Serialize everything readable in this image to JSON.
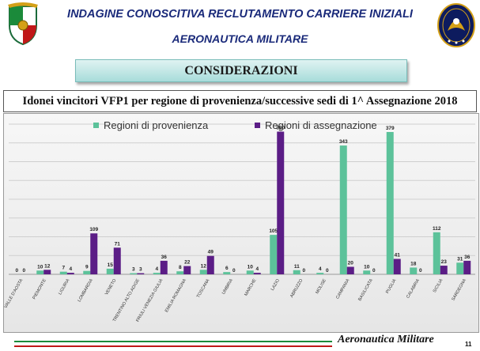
{
  "header": {
    "title": "INDAGINE CONOSCITIVA RECLUTAMENTO CARRIERE INIZIALI",
    "subtitle": "AERONAUTICA MILITARE"
  },
  "section_title": "CONSIDERAZIONI",
  "footer": {
    "brand": "Aeronautica Militare",
    "page_number": "11"
  },
  "colors": {
    "provenienza": "#5cc29a",
    "assegnazione": "#5b1d86",
    "title_blue": "#1a2a7a"
  },
  "chart_data": {
    "type": "bar",
    "title": "Idonei vincitori VFP1 per regione di provenienza/successive sedi di 1^ Assegnazione 2018",
    "legend_position": "top",
    "grid": true,
    "ylim": [
      0,
      400
    ],
    "categories": [
      "VALLE D'AOSTA",
      "PIEMONTE",
      "LIGURIA",
      "LOMBARDIA",
      "VENETO",
      "TRENTINO ALTO ADIGE",
      "FRIULI VENEZIA GIULIA",
      "EMILIA ROMAGNA",
      "TOSCANA",
      "UMBRIA",
      "MARCHE",
      "LAZIO",
      "ABRUZZO",
      "MOLISE",
      "CAMPANIA",
      "BASILICATA",
      "PUGLIA",
      "CALABRIA",
      "SICILIA",
      "SARDEGNA"
    ],
    "series": [
      {
        "name": "Regioni di provenienza",
        "values": [
          0,
          10,
          7,
          9,
          15,
          3,
          4,
          8,
          12,
          6,
          10,
          105,
          11,
          4,
          343,
          10,
          379,
          18,
          112,
          31
        ]
      },
      {
        "name": "Regioni di assegnazione",
        "values": [
          0,
          12,
          4,
          109,
          71,
          3,
          36,
          22,
          49,
          0,
          4,
          380,
          0,
          0,
          20,
          0,
          41,
          0,
          23,
          36
        ]
      }
    ]
  }
}
